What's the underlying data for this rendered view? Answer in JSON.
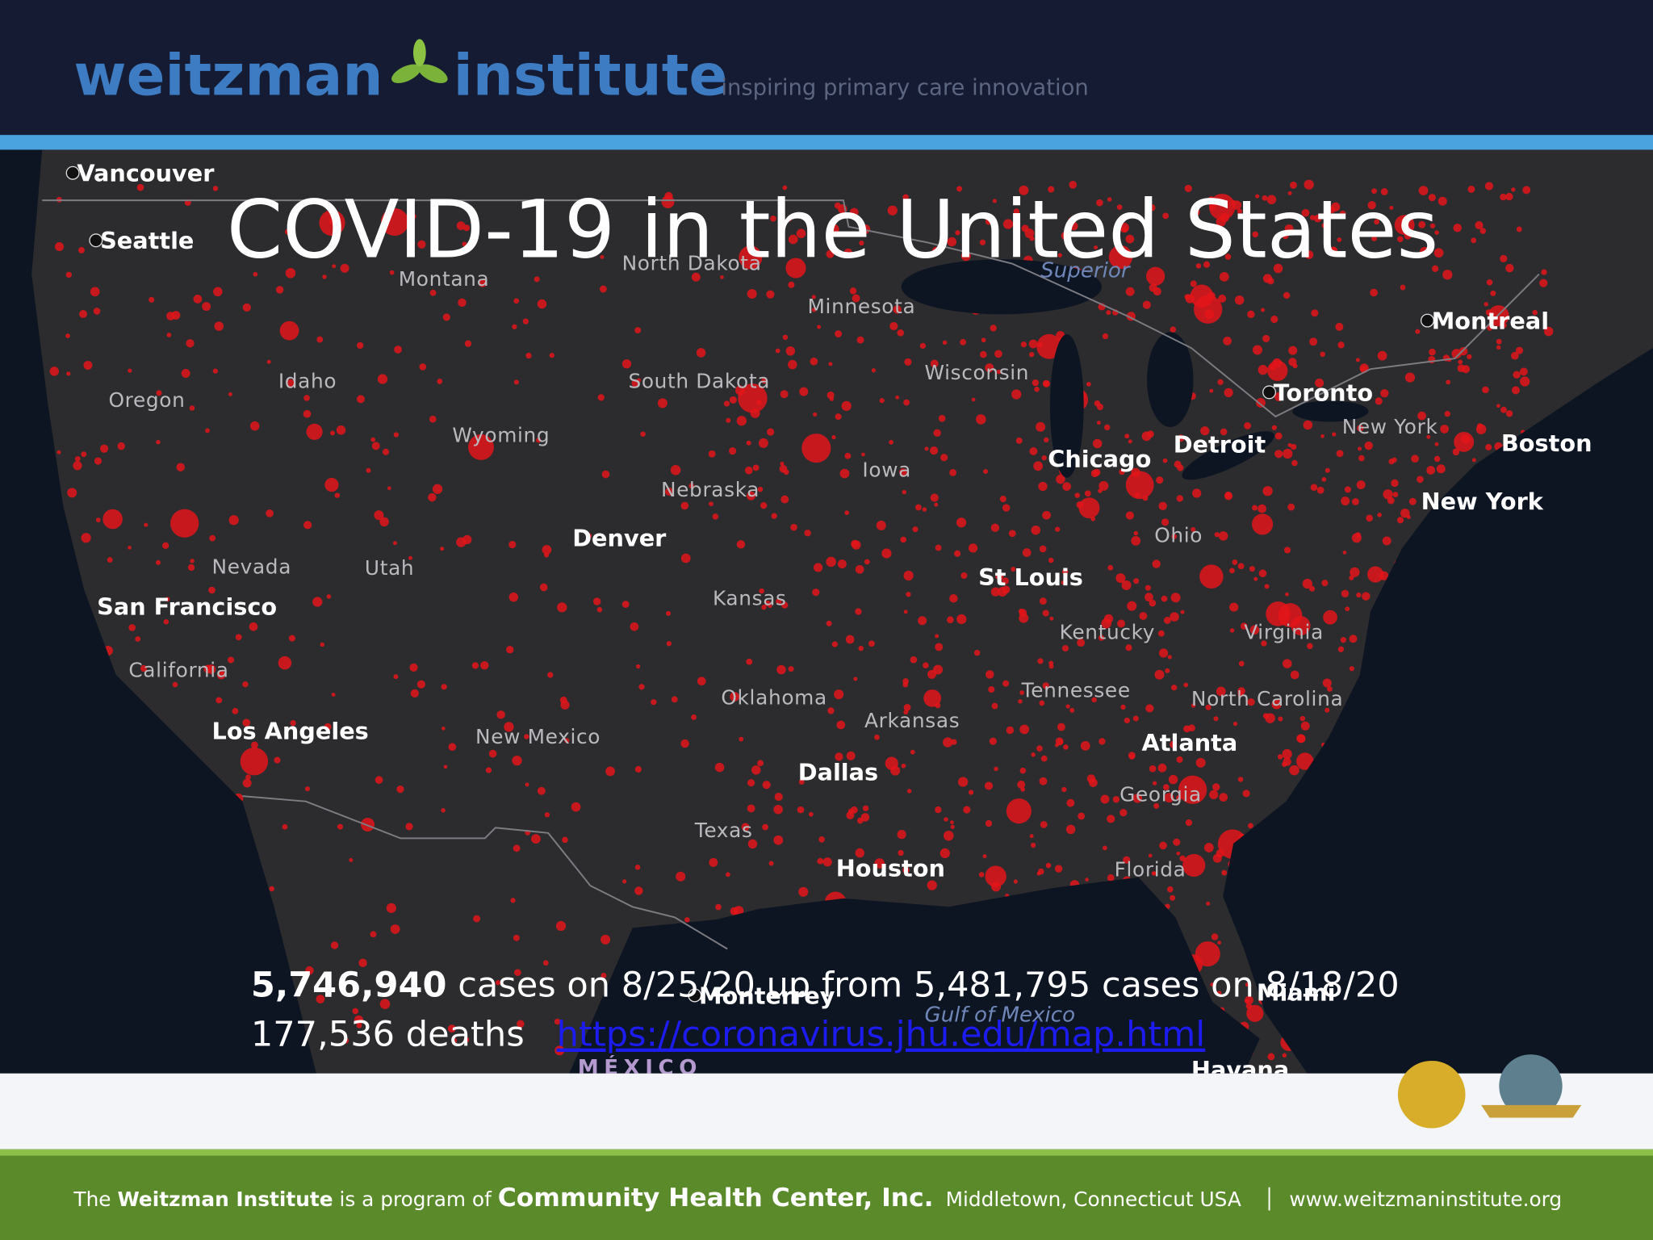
{
  "header": {
    "logo_left": "weitzman",
    "logo_right": "institute",
    "tagline": "inspiring primary care innovation"
  },
  "title": "COVID-19 in the United States",
  "map_labels": [
    {
      "text": "Vancouver",
      "kind": "city"
    },
    {
      "text": "Seattle",
      "kind": "city"
    },
    {
      "text": "Montana",
      "kind": "state"
    },
    {
      "text": "North Dakota",
      "kind": "state"
    },
    {
      "text": "Superior",
      "kind": "water"
    },
    {
      "text": "Minnesota",
      "kind": "state"
    },
    {
      "text": "Montreal",
      "kind": "city"
    },
    {
      "text": "Toronto",
      "kind": "city"
    },
    {
      "text": "Wisconsin",
      "kind": "state"
    },
    {
      "text": "Oregon",
      "kind": "state"
    },
    {
      "text": "Idaho",
      "kind": "state"
    },
    {
      "text": "South Dakota",
      "kind": "state"
    },
    {
      "text": "Wyoming",
      "kind": "state"
    },
    {
      "text": "New York",
      "kind": "state"
    },
    {
      "text": "Boston",
      "kind": "city"
    },
    {
      "text": "Detroit",
      "kind": "city"
    },
    {
      "text": "Chicago",
      "kind": "city"
    },
    {
      "text": "Iowa",
      "kind": "state"
    },
    {
      "text": "Nebraska",
      "kind": "state"
    },
    {
      "text": "New York",
      "kind": "city"
    },
    {
      "text": "Ohio",
      "kind": "state"
    },
    {
      "text": "Denver",
      "kind": "city"
    },
    {
      "text": "Nevada",
      "kind": "state"
    },
    {
      "text": "Utah",
      "kind": "state"
    },
    {
      "text": "St Louis",
      "kind": "city"
    },
    {
      "text": "San Francisco",
      "kind": "city"
    },
    {
      "text": "Kansas",
      "kind": "state"
    },
    {
      "text": "Kentucky",
      "kind": "state"
    },
    {
      "text": "Virginia",
      "kind": "state"
    },
    {
      "text": "California",
      "kind": "state"
    },
    {
      "text": "Tennessee",
      "kind": "state"
    },
    {
      "text": "North Carolina",
      "kind": "state"
    },
    {
      "text": "Oklahoma",
      "kind": "state"
    },
    {
      "text": "Arkansas",
      "kind": "state"
    },
    {
      "text": "Los Angeles",
      "kind": "city"
    },
    {
      "text": "New Mexico",
      "kind": "state"
    },
    {
      "text": "Atlanta",
      "kind": "city"
    },
    {
      "text": "Dallas",
      "kind": "city"
    },
    {
      "text": "Georgia",
      "kind": "state"
    },
    {
      "text": "Texas",
      "kind": "state"
    },
    {
      "text": "Houston",
      "kind": "city"
    },
    {
      "text": "Florida",
      "kind": "state"
    },
    {
      "text": "Monterrey",
      "kind": "city"
    },
    {
      "text": "Gulf of Mexico",
      "kind": "water"
    },
    {
      "text": "Miami",
      "kind": "city"
    },
    {
      "text": "MÉXICO",
      "kind": "country"
    },
    {
      "text": "Havana",
      "kind": "city"
    }
  ],
  "stats": {
    "cases": "5,746,940",
    "cases_text": "cases on 8/25/20 up from 5,481,795 cases on 8/18/20",
    "deaths": "177,536 deaths",
    "link": "https://coronavirus.jhu.edu/map.html"
  },
  "footer": {
    "prefix": "The",
    "institute": "Weitzman Institute",
    "middle": "is a program of",
    "organization": "Community Health Center, Inc.",
    "location": "Middletown, Connecticut USA",
    "website": "www.weitzmaninstitute.org"
  }
}
